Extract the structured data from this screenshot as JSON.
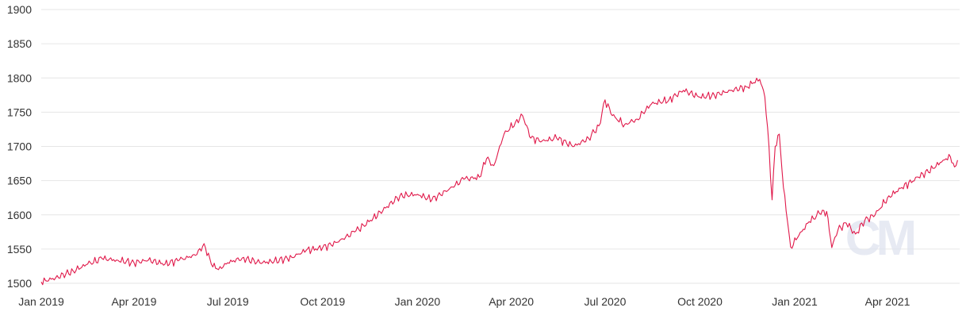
{
  "chart_data": {
    "type": "line",
    "title": "",
    "xlabel": "",
    "ylabel": "",
    "ylim": [
      1500,
      1900
    ],
    "yticks": [
      1500,
      1550,
      1600,
      1650,
      1700,
      1750,
      1800,
      1850,
      1900
    ],
    "xlim": [
      "2019-01-01",
      "2021-06-10"
    ],
    "xticks": [
      {
        "date": "2019-01-01",
        "label": "Jan 2019"
      },
      {
        "date": "2019-04-01",
        "label": "Apr 2019"
      },
      {
        "date": "2019-07-01",
        "label": "Jul 2019"
      },
      {
        "date": "2019-10-01",
        "label": "Oct 2019"
      },
      {
        "date": "2020-01-01",
        "label": "Jan 2020"
      },
      {
        "date": "2020-04-01",
        "label": "Apr 2020"
      },
      {
        "date": "2020-07-01",
        "label": "Jul 2020"
      },
      {
        "date": "2020-10-01",
        "label": "Oct 2020"
      },
      {
        "date": "2021-01-01",
        "label": "Jan 2021"
      },
      {
        "date": "2021-04-01",
        "label": "Apr 2021"
      }
    ],
    "grid": "horizontal",
    "legend": "none",
    "line_color": "#e0194a",
    "watermark": "CM",
    "series": [
      {
        "points": [
          [
            "2019-01-01",
            1502
          ],
          [
            "2019-01-15",
            1508
          ],
          [
            "2019-02-01",
            1518
          ],
          [
            "2019-02-15",
            1528
          ],
          [
            "2019-03-01",
            1536
          ],
          [
            "2019-03-15",
            1534
          ],
          [
            "2019-04-01",
            1530
          ],
          [
            "2019-04-15",
            1534
          ],
          [
            "2019-05-01",
            1528
          ],
          [
            "2019-05-15",
            1534
          ],
          [
            "2019-06-01",
            1542
          ],
          [
            "2019-06-08",
            1558
          ],
          [
            "2019-06-15",
            1528
          ],
          [
            "2019-06-22",
            1520
          ],
          [
            "2019-07-01",
            1530
          ],
          [
            "2019-07-15",
            1537
          ],
          [
            "2019-08-01",
            1530
          ],
          [
            "2019-08-15",
            1532
          ],
          [
            "2019-09-01",
            1538
          ],
          [
            "2019-09-15",
            1548
          ],
          [
            "2019-10-01",
            1552
          ],
          [
            "2019-10-15",
            1560
          ],
          [
            "2019-11-01",
            1575
          ],
          [
            "2019-11-15",
            1590
          ],
          [
            "2019-12-01",
            1610
          ],
          [
            "2019-12-15",
            1628
          ],
          [
            "2020-01-01",
            1630
          ],
          [
            "2020-01-15",
            1622
          ],
          [
            "2020-02-01",
            1638
          ],
          [
            "2020-02-15",
            1652
          ],
          [
            "2020-03-01",
            1655
          ],
          [
            "2020-03-08",
            1682
          ],
          [
            "2020-03-15",
            1672
          ],
          [
            "2020-03-25",
            1718
          ],
          [
            "2020-04-05",
            1735
          ],
          [
            "2020-04-12",
            1745
          ],
          [
            "2020-04-20",
            1712
          ],
          [
            "2020-05-01",
            1708
          ],
          [
            "2020-05-15",
            1712
          ],
          [
            "2020-06-01",
            1700
          ],
          [
            "2020-06-15",
            1712
          ],
          [
            "2020-06-25",
            1730
          ],
          [
            "2020-07-01",
            1768
          ],
          [
            "2020-07-08",
            1745
          ],
          [
            "2020-07-20",
            1732
          ],
          [
            "2020-08-01",
            1740
          ],
          [
            "2020-08-15",
            1762
          ],
          [
            "2020-09-01",
            1768
          ],
          [
            "2020-09-15",
            1782
          ],
          [
            "2020-10-01",
            1772
          ],
          [
            "2020-10-15",
            1775
          ],
          [
            "2020-11-01",
            1782
          ],
          [
            "2020-11-15",
            1787
          ],
          [
            "2020-11-22",
            1793
          ],
          [
            "2020-11-28",
            1798
          ],
          [
            "2020-12-03",
            1772
          ],
          [
            "2020-12-07",
            1700
          ],
          [
            "2020-12-10",
            1622
          ],
          [
            "2020-12-13",
            1700
          ],
          [
            "2020-12-17",
            1718
          ],
          [
            "2020-12-21",
            1640
          ],
          [
            "2020-12-25",
            1590
          ],
          [
            "2020-12-28",
            1553
          ],
          [
            "2021-01-05",
            1570
          ],
          [
            "2021-01-15",
            1590
          ],
          [
            "2021-01-25",
            1602
          ],
          [
            "2021-02-01",
            1605
          ],
          [
            "2021-02-06",
            1552
          ],
          [
            "2021-02-12",
            1578
          ],
          [
            "2021-02-20",
            1588
          ],
          [
            "2021-03-01",
            1572
          ],
          [
            "2021-03-10",
            1592
          ],
          [
            "2021-03-20",
            1600
          ],
          [
            "2021-04-01",
            1625
          ],
          [
            "2021-04-15",
            1640
          ],
          [
            "2021-05-01",
            1655
          ],
          [
            "2021-05-15",
            1668
          ],
          [
            "2021-05-25",
            1680
          ],
          [
            "2021-06-01",
            1685
          ],
          [
            "2021-06-05",
            1670
          ],
          [
            "2021-06-08",
            1680
          ]
        ]
      }
    ]
  }
}
